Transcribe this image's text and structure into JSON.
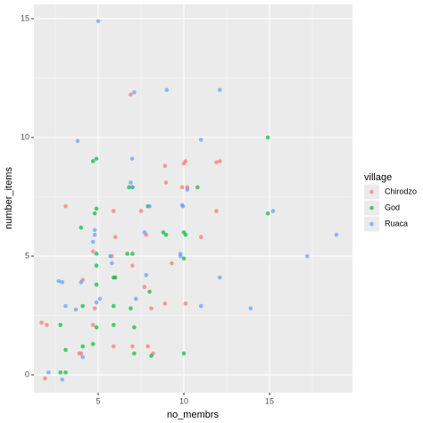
{
  "chart_data": {
    "type": "scatter",
    "x_label": "no_membrs",
    "y_label": "number_items",
    "legend_title": "village",
    "xlim": [
      1.25,
      19.84
    ],
    "ylim": [
      -0.75,
      15.6
    ],
    "xticks": [
      5,
      10,
      15
    ],
    "yticks": [
      0,
      5,
      10,
      15
    ],
    "grid": true,
    "legend": "right",
    "series": [
      {
        "name": "Chirodzo",
        "color": "#F8766D",
        "x": [
          1.7,
          2.0,
          1.9,
          3.1,
          3.9,
          4.1,
          4.0,
          4.7,
          4.8,
          4.7,
          5.9,
          6.0,
          5.9,
          5.8,
          6.9,
          7.0,
          7.0,
          7.5,
          7.8,
          7.7,
          7.9,
          8.2,
          8.1,
          8.9,
          8.96,
          8.9,
          10,
          10.1,
          9.9,
          10.2,
          11.0,
          11.9,
          12.1,
          11.9,
          9.3,
          10.1
        ],
        "values": [
          2.2,
          2.1,
          -0.15,
          7.1,
          0.9,
          4.0,
          0.9,
          5.2,
          2.8,
          2.1,
          6.9,
          5.8,
          1.2,
          5.0,
          11.8,
          4.6,
          1.2,
          6.9,
          5.9,
          3.7,
          1.2,
          0.9,
          2.8,
          8.8,
          8.1,
          3.0,
          8.9,
          9.0,
          7.9,
          7.9,
          5.8,
          8.95,
          9.0,
          6.9,
          4.7,
          3.0
        ]
      },
      {
        "name": "God",
        "color": "#00BA38",
        "x": [
          2.8,
          2.8,
          3.1,
          3.1,
          4.1,
          4.1,
          4.0,
          4.7,
          4.9,
          4.8,
          4.9,
          4.9,
          4.9,
          4.9,
          4.9,
          4.7,
          5.9,
          6.0,
          5.9,
          5.9,
          6.7,
          7.0,
          6.9,
          7.1,
          6.8,
          7.0,
          7.1,
          7.9,
          8.0,
          8.1,
          8.8,
          8.96,
          10,
          10.1,
          10,
          10,
          10.8,
          14.9,
          14.9
        ],
        "values": [
          2.1,
          0.1,
          0.1,
          1.05,
          1.2,
          2.9,
          6.2,
          9.0,
          9.1,
          6.8,
          7.0,
          5.1,
          4.6,
          3.8,
          2.0,
          1.3,
          4.1,
          4.1,
          2.1,
          2.9,
          5.1,
          5.1,
          2.8,
          2.0,
          7.9,
          7.9,
          0.9,
          7.1,
          3.5,
          0.8,
          6.0,
          5.9,
          6.0,
          5.9,
          4.9,
          0.9,
          7.9,
          10.0,
          6.8
        ]
      },
      {
        "name": "Ruaca",
        "color": "#619CFF",
        "x": [
          5.0,
          7.1,
          9.0,
          12.1,
          3.8,
          6.98,
          11.0,
          6.9,
          7.0,
          8.0,
          9.95,
          9.9,
          10.2,
          4.8,
          4.8,
          4.7,
          7.7,
          7.8,
          5.7,
          5.8,
          9.8,
          9.8,
          12.1,
          11.0,
          13.9,
          15.2,
          17.2,
          18.9,
          2.7,
          2.9,
          4.0,
          3.1,
          4.9,
          5.1,
          3.7,
          2.1,
          2.9,
          4.1,
          7.2
        ],
        "values": [
          14.9,
          11.9,
          12.0,
          12.0,
          9.85,
          9.1,
          9.9,
          8.1,
          7.9,
          7.1,
          7.1,
          7.15,
          7.8,
          6.1,
          5.9,
          5.6,
          6.0,
          4.2,
          5.0,
          4.7,
          5.1,
          5.0,
          4.1,
          2.9,
          2.8,
          6.9,
          5.0,
          5.9,
          3.95,
          3.9,
          3.9,
          2.9,
          3.05,
          3.2,
          2.75,
          0.1,
          -0.2,
          0.75,
          3.2
        ]
      }
    ]
  }
}
